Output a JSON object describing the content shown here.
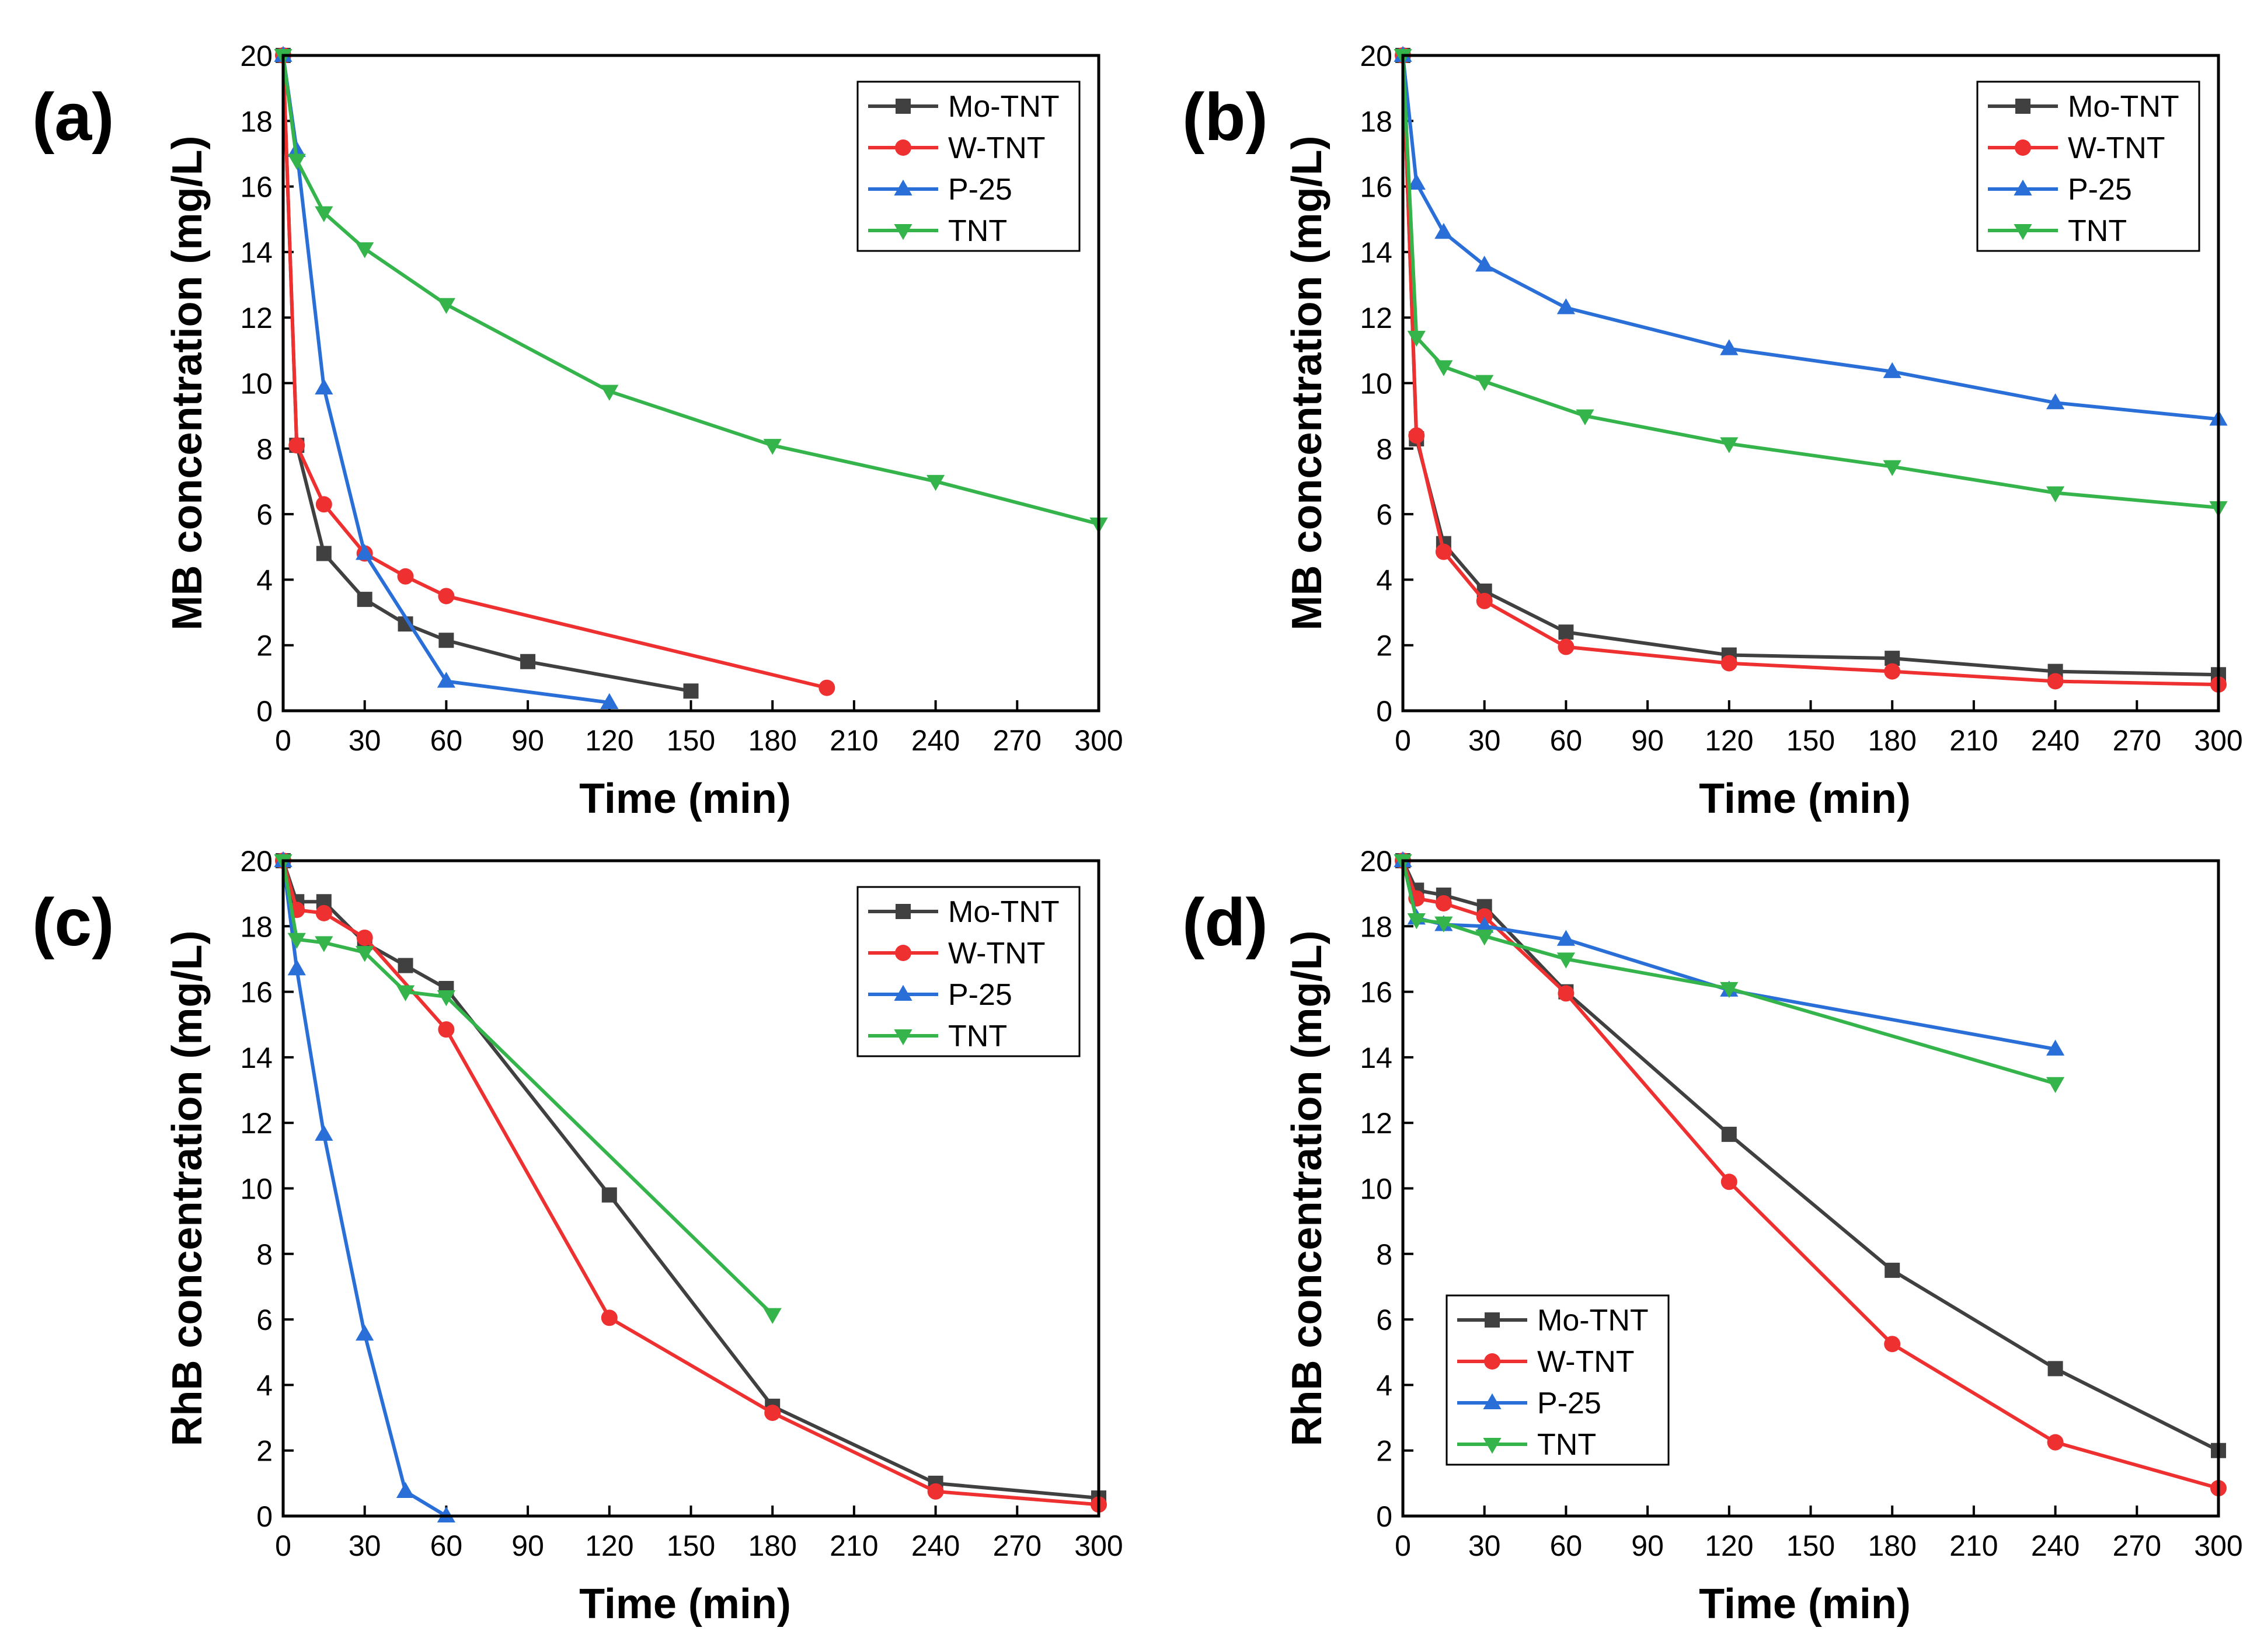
{
  "colors": {
    "Mo-TNT": "#404040",
    "W-TNT": "#ee3030",
    "P-25": "#2a6fd8",
    "TNT": "#34b44a"
  },
  "chart_data": [
    {
      "type": "line",
      "panel_label": "(a)",
      "xlabel": "Time (min)",
      "ylabel": "MB concentration (mg/L)",
      "xlim": [
        0,
        300
      ],
      "ylim": [
        0,
        20
      ],
      "xticks": [
        0,
        30,
        60,
        90,
        120,
        150,
        180,
        210,
        240,
        270,
        300
      ],
      "yticks": [
        0,
        2,
        4,
        6,
        8,
        10,
        12,
        14,
        16,
        18,
        20
      ],
      "legend": "top-right",
      "series": [
        {
          "name": "Mo-TNT",
          "marker": "square",
          "x": [
            0,
            5,
            15,
            30,
            45,
            60,
            90,
            150
          ],
          "y": [
            20,
            8.1,
            4.8,
            3.4,
            2.65,
            2.15,
            1.5,
            0.6
          ]
        },
        {
          "name": "W-TNT",
          "marker": "circle",
          "x": [
            0,
            5,
            15,
            30,
            45,
            60,
            200
          ],
          "y": [
            20,
            8.1,
            6.3,
            4.8,
            4.1,
            3.5,
            0.7
          ]
        },
        {
          "name": "P-25",
          "marker": "triangle-up",
          "x": [
            0,
            5,
            15,
            30,
            60,
            120
          ],
          "y": [
            20,
            17.1,
            9.85,
            4.8,
            0.9,
            0.25
          ]
        },
        {
          "name": "TNT",
          "marker": "triangle-down",
          "x": [
            0,
            5,
            15,
            30,
            60,
            120,
            180,
            240,
            300
          ],
          "y": [
            20,
            16.8,
            15.2,
            14.1,
            12.4,
            9.75,
            8.1,
            7.0,
            5.7
          ]
        }
      ]
    },
    {
      "type": "line",
      "panel_label": "(b)",
      "xlabel": "Time (min)",
      "ylabel": "MB concentration (mg/L)",
      "xlim": [
        0,
        300
      ],
      "ylim": [
        0,
        20
      ],
      "xticks": [
        0,
        30,
        60,
        90,
        120,
        150,
        180,
        210,
        240,
        270,
        300
      ],
      "yticks": [
        0,
        2,
        4,
        6,
        8,
        10,
        12,
        14,
        16,
        18,
        20
      ],
      "legend": "top-right",
      "series": [
        {
          "name": "Mo-TNT",
          "marker": "square",
          "x": [
            0,
            5,
            15,
            30,
            60,
            120,
            180,
            240,
            300
          ],
          "y": [
            20,
            8.3,
            5.1,
            3.65,
            2.4,
            1.7,
            1.6,
            1.2,
            1.1
          ]
        },
        {
          "name": "W-TNT",
          "marker": "circle",
          "x": [
            0,
            5,
            15,
            30,
            60,
            120,
            180,
            240,
            300
          ],
          "y": [
            20,
            8.4,
            4.85,
            3.35,
            1.95,
            1.45,
            1.2,
            0.9,
            0.8
          ]
        },
        {
          "name": "P-25",
          "marker": "triangle-up",
          "x": [
            0,
            5,
            15,
            30,
            60,
            120,
            180,
            240,
            300
          ],
          "y": [
            20,
            16.1,
            14.6,
            13.6,
            12.3,
            11.05,
            10.35,
            9.4,
            8.9
          ]
        },
        {
          "name": "TNT",
          "marker": "triangle-down",
          "x": [
            0,
            5,
            15,
            30,
            67,
            120,
            180,
            240,
            300
          ],
          "y": [
            20,
            11.4,
            10.5,
            10.05,
            9.0,
            8.15,
            7.45,
            6.65,
            6.2
          ]
        }
      ]
    },
    {
      "type": "line",
      "panel_label": "(c)",
      "xlabel": "Time (min)",
      "ylabel": "RhB concentration (mg/L)",
      "xlim": [
        0,
        300
      ],
      "ylim": [
        0,
        20
      ],
      "xticks": [
        0,
        30,
        60,
        90,
        120,
        150,
        180,
        210,
        240,
        270,
        300
      ],
      "yticks": [
        0,
        2,
        4,
        6,
        8,
        10,
        12,
        14,
        16,
        18,
        20
      ],
      "legend": "top-right",
      "series": [
        {
          "name": "Mo-TNT",
          "marker": "square",
          "x": [
            0,
            5,
            15,
            30,
            45,
            60,
            120,
            180,
            240,
            300
          ],
          "y": [
            20,
            18.75,
            18.75,
            17.5,
            16.8,
            16.1,
            9.8,
            3.35,
            1.0,
            0.55
          ]
        },
        {
          "name": "W-TNT",
          "marker": "circle",
          "x": [
            0,
            5,
            15,
            30,
            60,
            120,
            180,
            240,
            300
          ],
          "y": [
            20,
            18.5,
            18.4,
            17.65,
            14.85,
            6.05,
            3.15,
            0.75,
            0.35
          ]
        },
        {
          "name": "P-25",
          "marker": "triangle-up",
          "x": [
            0,
            5,
            15,
            30,
            45,
            60
          ],
          "y": [
            20,
            16.7,
            11.65,
            5.55,
            0.75,
            0.0
          ]
        },
        {
          "name": "TNT",
          "marker": "triangle-down",
          "x": [
            0,
            5,
            15,
            30,
            45,
            60,
            180
          ],
          "y": [
            20,
            17.6,
            17.5,
            17.2,
            16.0,
            15.85,
            6.15
          ]
        }
      ]
    },
    {
      "type": "line",
      "panel_label": "(d)",
      "xlabel": "Time (min)",
      "ylabel": "RhB concentration (mg/L)",
      "xlim": [
        0,
        300
      ],
      "ylim": [
        0,
        20
      ],
      "xticks": [
        0,
        30,
        60,
        90,
        120,
        150,
        180,
        210,
        240,
        270,
        300
      ],
      "yticks": [
        0,
        2,
        4,
        6,
        8,
        10,
        12,
        14,
        16,
        18,
        20
      ],
      "legend": "bottom-left",
      "series": [
        {
          "name": "Mo-TNT",
          "marker": "square",
          "x": [
            0,
            5,
            15,
            30,
            60,
            120,
            180,
            240,
            300
          ],
          "y": [
            20,
            19.1,
            18.95,
            18.6,
            16.0,
            11.65,
            7.5,
            4.5,
            2.0
          ]
        },
        {
          "name": "W-TNT",
          "marker": "circle",
          "x": [
            0,
            5,
            15,
            30,
            60,
            120,
            180,
            240,
            300
          ],
          "y": [
            20,
            18.85,
            18.7,
            18.3,
            15.95,
            10.2,
            5.25,
            2.25,
            0.85
          ]
        },
        {
          "name": "P-25",
          "marker": "triangle-up",
          "x": [
            0,
            5,
            15,
            30,
            60,
            120,
            240
          ],
          "y": [
            20,
            18.25,
            18.05,
            18.0,
            17.6,
            16.05,
            14.25
          ]
        },
        {
          "name": "TNT",
          "marker": "triangle-down",
          "x": [
            0,
            5,
            15,
            30,
            60,
            120,
            240
          ],
          "y": [
            20,
            18.2,
            18.1,
            17.7,
            17.0,
            16.1,
            13.2
          ]
        }
      ]
    }
  ]
}
